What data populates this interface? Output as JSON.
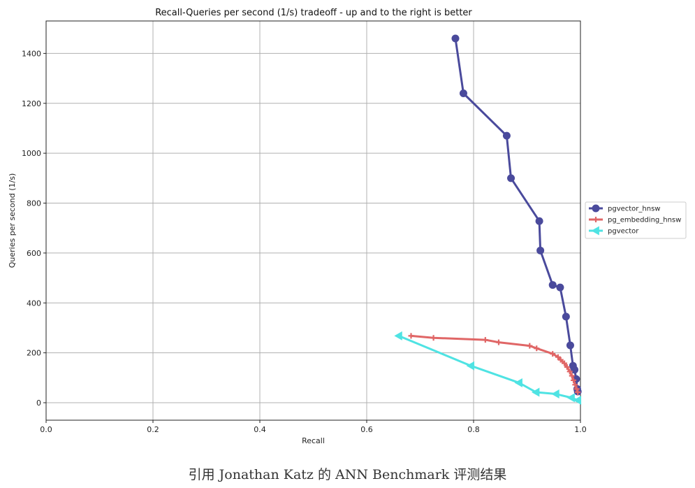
{
  "chart_data": {
    "type": "line",
    "title": "Recall-Queries per second (1/s) tradeoff - up and to the right is better",
    "xlabel": "Recall",
    "ylabel": "Queries per second (1/s)",
    "xlim": [
      0.0,
      1.0
    ],
    "ylim": [
      -70,
      1530
    ],
    "xticks": [
      0.0,
      0.2,
      0.4,
      0.6,
      0.8,
      1.0
    ],
    "xtick_labels": [
      "0.0",
      "0.2",
      "0.4",
      "0.6",
      "0.8",
      "1.0"
    ],
    "yticks": [
      0,
      200,
      400,
      600,
      800,
      1000,
      1200,
      1400
    ],
    "ytick_labels": [
      "0",
      "200",
      "400",
      "600",
      "800",
      "1000",
      "1200",
      "1400"
    ],
    "grid": true,
    "legend_position": "outside-right",
    "series": [
      {
        "name": "pgvector_hnsw",
        "color": "#4a4a9c",
        "marker": "circle",
        "points": [
          [
            0.766,
            1460
          ],
          [
            0.781,
            1240
          ],
          [
            0.862,
            1070
          ],
          [
            0.87,
            900
          ],
          [
            0.923,
            728
          ],
          [
            0.925,
            610
          ],
          [
            0.948,
            472
          ],
          [
            0.962,
            462
          ],
          [
            0.973,
            345
          ],
          [
            0.981,
            230
          ],
          [
            0.986,
            148
          ],
          [
            0.989,
            132
          ],
          [
            0.992,
            95
          ],
          [
            0.994,
            55
          ],
          [
            0.995,
            45
          ]
        ]
      },
      {
        "name": "pg_embedding_hnsw",
        "color": "#e06666",
        "marker": "plus",
        "points": [
          [
            0.683,
            268
          ],
          [
            0.725,
            260
          ],
          [
            0.822,
            252
          ],
          [
            0.847,
            242
          ],
          [
            0.905,
            228
          ],
          [
            0.918,
            218
          ],
          [
            0.948,
            196
          ],
          [
            0.958,
            183
          ],
          [
            0.963,
            172
          ],
          [
            0.97,
            158
          ],
          [
            0.975,
            143
          ],
          [
            0.98,
            125
          ],
          [
            0.984,
            108
          ],
          [
            0.987,
            90
          ],
          [
            0.99,
            72
          ],
          [
            0.993,
            55
          ],
          [
            0.995,
            42
          ]
        ]
      },
      {
        "name": "pgvector",
        "color": "#4fe3e3",
        "marker": "triangle-left",
        "points": [
          [
            0.66,
            268
          ],
          [
            0.795,
            148
          ],
          [
            0.885,
            80
          ],
          [
            0.917,
            42
          ],
          [
            0.954,
            35
          ],
          [
            0.983,
            20
          ],
          [
            0.995,
            10
          ]
        ]
      }
    ]
  },
  "caption": "引用 Jonathan Katz 的 ANN Benchmark 评测结果"
}
